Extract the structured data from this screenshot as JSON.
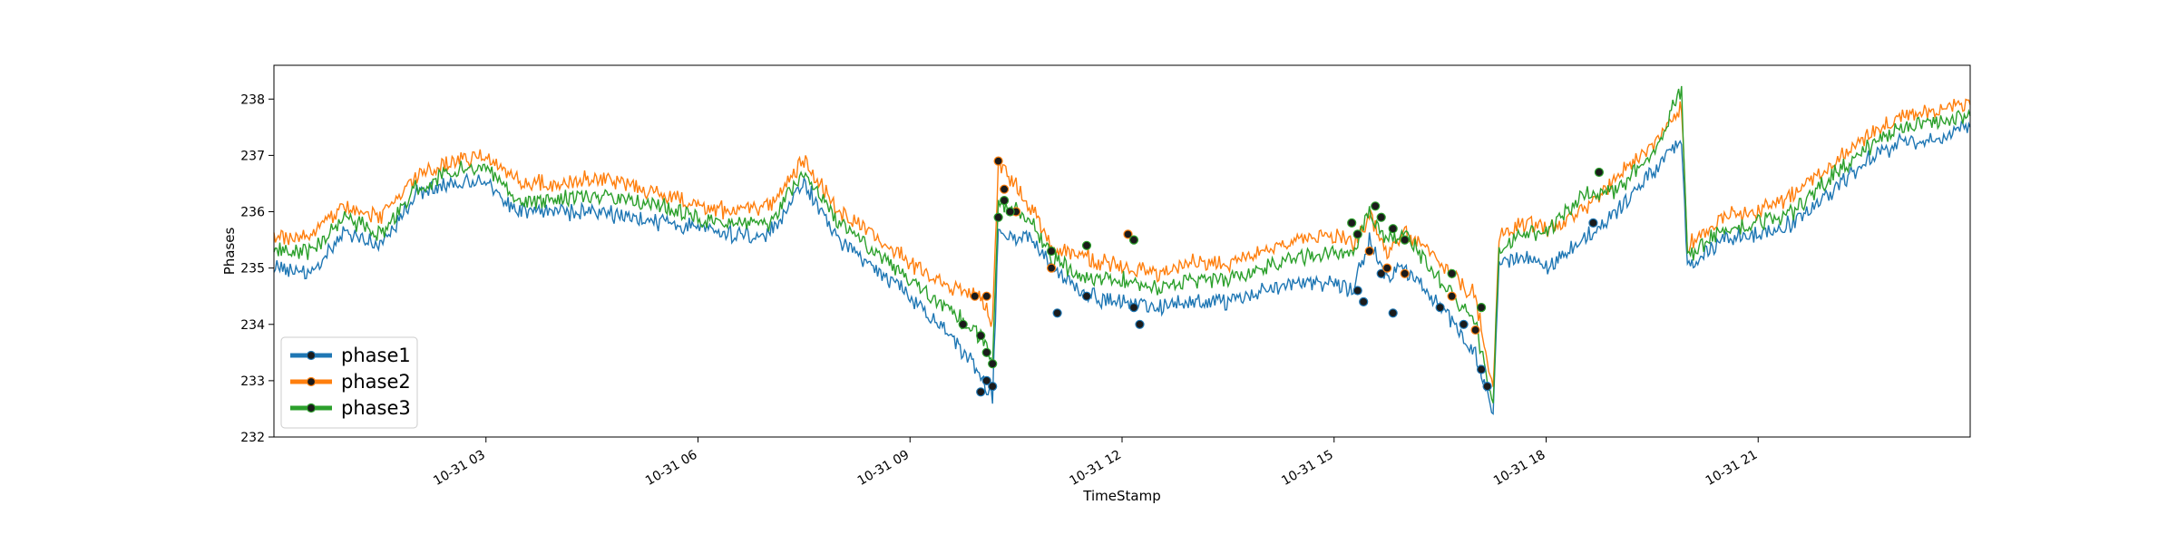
{
  "chart_data": {
    "type": "line",
    "xlabel": "TimeStamp",
    "ylabel": "Phases",
    "xlim": [
      "10-31 00:00",
      "11-01 00:00"
    ],
    "ylim": [
      232,
      238.6
    ],
    "x_ticks": [
      {
        "t": "10-31 03:00",
        "label": "10-31 03"
      },
      {
        "t": "10-31 06:00",
        "label": "10-31 06"
      },
      {
        "t": "10-31 09:00",
        "label": "10-31 09"
      },
      {
        "t": "10-31 12:00",
        "label": "10-31 12"
      },
      {
        "t": "10-31 15:00",
        "label": "10-31 15"
      },
      {
        "t": "10-31 18:00",
        "label": "10-31 18"
      },
      {
        "t": "10-31 21:00",
        "label": "10-31 21"
      }
    ],
    "y_ticks": [
      232,
      233,
      234,
      235,
      236,
      237,
      238
    ],
    "grid": false,
    "legend_position": "lower-left",
    "series": [
      {
        "name": "phase1",
        "color": "#1f77b4",
        "points": [
          [
            "10-31 00:00",
            235.0
          ],
          [
            "10-31 00:30",
            234.9
          ],
          [
            "10-31 01:00",
            235.6
          ],
          [
            "10-31 01:30",
            235.4
          ],
          [
            "10-31 02:00",
            236.3
          ],
          [
            "10-31 02:30",
            236.5
          ],
          [
            "10-31 03:00",
            236.5
          ],
          [
            "10-31 03:30",
            236.0
          ],
          [
            "10-31 04:00",
            236.0
          ],
          [
            "10-31 04:30",
            236.0
          ],
          [
            "10-31 05:00",
            235.9
          ],
          [
            "10-31 05:30",
            235.8
          ],
          [
            "10-31 06:00",
            235.7
          ],
          [
            "10-31 06:30",
            235.6
          ],
          [
            "10-31 07:00",
            235.6
          ],
          [
            "10-31 07:30",
            236.5
          ],
          [
            "10-31 08:00",
            235.5
          ],
          [
            "10-31 08:30",
            235.0
          ],
          [
            "10-31 09:00",
            234.5
          ],
          [
            "10-31 09:30",
            233.9
          ],
          [
            "10-31 10:00",
            233.1
          ],
          [
            "10-31 10:10",
            232.7
          ],
          [
            "10-31 10:15",
            235.6
          ],
          [
            "10-31 10:45",
            235.5
          ],
          [
            "10-31 11:00",
            235.0
          ],
          [
            "10-31 11:30",
            234.5
          ],
          [
            "10-31 12:00",
            234.4
          ],
          [
            "10-31 12:30",
            234.3
          ],
          [
            "10-31 13:00",
            234.4
          ],
          [
            "10-31 13:30",
            234.4
          ],
          [
            "10-31 14:00",
            234.6
          ],
          [
            "10-31 14:30",
            234.8
          ],
          [
            "10-31 15:00",
            234.7
          ],
          [
            "10-31 15:15",
            234.6
          ],
          [
            "10-31 15:30",
            235.5
          ],
          [
            "10-31 15:45",
            234.8
          ],
          [
            "10-31 16:00",
            235.0
          ],
          [
            "10-31 16:30",
            234.3
          ],
          [
            "10-31 17:00",
            233.5
          ],
          [
            "10-31 17:15",
            232.4
          ],
          [
            "10-31 17:20",
            235.1
          ],
          [
            "10-31 17:45",
            235.2
          ],
          [
            "10-31 18:00",
            235.0
          ],
          [
            "10-31 18:30",
            235.5
          ],
          [
            "10-31 19:00",
            236.0
          ],
          [
            "10-31 19:30",
            236.7
          ],
          [
            "10-31 19:55",
            237.3
          ],
          [
            "10-31 20:00",
            235.0
          ],
          [
            "10-31 20:30",
            235.5
          ],
          [
            "10-31 21:00",
            235.6
          ],
          [
            "10-31 21:30",
            235.8
          ],
          [
            "10-31 22:00",
            236.3
          ],
          [
            "10-31 22:30",
            236.9
          ],
          [
            "10-31 23:00",
            237.2
          ],
          [
            "10-31 23:30",
            237.3
          ],
          [
            "11-01 00:00",
            237.5
          ]
        ],
        "markers": [
          [
            "10-31 10:00",
            232.8
          ],
          [
            "10-31 10:05",
            233.0
          ],
          [
            "10-31 10:10",
            232.9
          ],
          [
            "10-31 11:05",
            234.2
          ],
          [
            "10-31 11:30",
            234.5
          ],
          [
            "10-31 12:10",
            234.3
          ],
          [
            "10-31 12:15",
            234.0
          ],
          [
            "10-31 15:20",
            234.6
          ],
          [
            "10-31 15:25",
            234.4
          ],
          [
            "10-31 15:40",
            234.9
          ],
          [
            "10-31 15:50",
            234.2
          ],
          [
            "10-31 16:30",
            234.3
          ],
          [
            "10-31 16:50",
            234.0
          ],
          [
            "10-31 17:05",
            233.2
          ],
          [
            "10-31 17:10",
            232.9
          ],
          [
            "10-31 18:40",
            235.8
          ]
        ]
      },
      {
        "name": "phase2",
        "color": "#ff7f0e",
        "points": [
          [
            "10-31 00:00",
            235.5
          ],
          [
            "10-31 00:30",
            235.6
          ],
          [
            "10-31 01:00",
            236.1
          ],
          [
            "10-31 01:30",
            235.9
          ],
          [
            "10-31 02:00",
            236.6
          ],
          [
            "10-31 02:30",
            236.9
          ],
          [
            "10-31 03:00",
            237.0
          ],
          [
            "10-31 03:30",
            236.5
          ],
          [
            "10-31 04:00",
            236.5
          ],
          [
            "10-31 04:30",
            236.6
          ],
          [
            "10-31 05:00",
            236.5
          ],
          [
            "10-31 05:30",
            236.3
          ],
          [
            "10-31 06:00",
            236.1
          ],
          [
            "10-31 06:30",
            236.0
          ],
          [
            "10-31 07:00",
            236.1
          ],
          [
            "10-31 07:30",
            236.9
          ],
          [
            "10-31 08:00",
            236.0
          ],
          [
            "10-31 08:30",
            235.6
          ],
          [
            "10-31 09:00",
            235.1
          ],
          [
            "10-31 09:30",
            234.7
          ],
          [
            "10-31 10:00",
            234.5
          ],
          [
            "10-31 10:10",
            234.0
          ],
          [
            "10-31 10:15",
            236.9
          ],
          [
            "10-31 10:45",
            236.0
          ],
          [
            "10-31 11:00",
            235.4
          ],
          [
            "10-31 11:30",
            235.2
          ],
          [
            "10-31 12:00",
            235.0
          ],
          [
            "10-31 12:30",
            234.9
          ],
          [
            "10-31 13:00",
            235.1
          ],
          [
            "10-31 13:30",
            235.1
          ],
          [
            "10-31 14:00",
            235.3
          ],
          [
            "10-31 14:30",
            235.5
          ],
          [
            "10-31 15:00",
            235.6
          ],
          [
            "10-31 15:15",
            235.4
          ],
          [
            "10-31 15:30",
            235.9
          ],
          [
            "10-31 15:45",
            235.3
          ],
          [
            "10-31 16:00",
            235.6
          ],
          [
            "10-31 16:30",
            235.1
          ],
          [
            "10-31 17:00",
            234.5
          ],
          [
            "10-31 17:15",
            232.8
          ],
          [
            "10-31 17:20",
            235.6
          ],
          [
            "10-31 17:45",
            235.8
          ],
          [
            "10-31 18:00",
            235.7
          ],
          [
            "10-31 18:30",
            236.0
          ],
          [
            "10-31 19:00",
            236.6
          ],
          [
            "10-31 19:30",
            237.2
          ],
          [
            "10-31 19:55",
            237.9
          ],
          [
            "10-31 20:00",
            235.4
          ],
          [
            "10-31 20:30",
            235.9
          ],
          [
            "10-31 21:00",
            236.0
          ],
          [
            "10-31 21:30",
            236.3
          ],
          [
            "10-31 22:00",
            236.8
          ],
          [
            "10-31 22:30",
            237.3
          ],
          [
            "10-31 23:00",
            237.7
          ],
          [
            "10-31 23:30",
            237.8
          ],
          [
            "11-01 00:00",
            237.9
          ]
        ],
        "markers": [
          [
            "10-31 09:55",
            234.5
          ],
          [
            "10-31 10:05",
            234.5
          ],
          [
            "10-31 10:15",
            236.9
          ],
          [
            "10-31 10:20",
            236.4
          ],
          [
            "10-31 10:30",
            236.0
          ],
          [
            "10-31 11:00",
            235.0
          ],
          [
            "10-31 12:05",
            235.6
          ],
          [
            "10-31 15:30",
            235.3
          ],
          [
            "10-31 15:45",
            235.0
          ],
          [
            "10-31 16:00",
            234.9
          ],
          [
            "10-31 16:40",
            234.5
          ],
          [
            "10-31 17:00",
            233.9
          ]
        ]
      },
      {
        "name": "phase3",
        "color": "#2ca02c",
        "points": [
          [
            "10-31 00:00",
            235.3
          ],
          [
            "10-31 00:30",
            235.3
          ],
          [
            "10-31 01:00",
            235.9
          ],
          [
            "10-31 01:30",
            235.6
          ],
          [
            "10-31 02:00",
            236.4
          ],
          [
            "10-31 02:30",
            236.7
          ],
          [
            "10-31 03:00",
            236.8
          ],
          [
            "10-31 03:30",
            236.2
          ],
          [
            "10-31 04:00",
            236.2
          ],
          [
            "10-31 04:30",
            236.3
          ],
          [
            "10-31 05:00",
            236.2
          ],
          [
            "10-31 05:30",
            236.1
          ],
          [
            "10-31 06:00",
            235.9
          ],
          [
            "10-31 06:30",
            235.8
          ],
          [
            "10-31 07:00",
            235.8
          ],
          [
            "10-31 07:30",
            236.7
          ],
          [
            "10-31 08:00",
            235.8
          ],
          [
            "10-31 08:30",
            235.3
          ],
          [
            "10-31 09:00",
            234.8
          ],
          [
            "10-31 09:30",
            234.3
          ],
          [
            "10-31 10:00",
            233.8
          ],
          [
            "10-31 10:10",
            233.4
          ],
          [
            "10-31 10:15",
            236.2
          ],
          [
            "10-31 10:45",
            235.8
          ],
          [
            "10-31 11:00",
            235.2
          ],
          [
            "10-31 11:30",
            234.8
          ],
          [
            "10-31 12:00",
            234.8
          ],
          [
            "10-31 12:30",
            234.6
          ],
          [
            "10-31 13:00",
            234.8
          ],
          [
            "10-31 13:30",
            234.8
          ],
          [
            "10-31 14:00",
            235.0
          ],
          [
            "10-31 14:30",
            235.2
          ],
          [
            "10-31 15:00",
            235.3
          ],
          [
            "10-31 15:15",
            235.2
          ],
          [
            "10-31 15:30",
            236.0
          ],
          [
            "10-31 15:45",
            235.5
          ],
          [
            "10-31 16:00",
            235.6
          ],
          [
            "10-31 16:30",
            234.8
          ],
          [
            "10-31 17:00",
            234.0
          ],
          [
            "10-31 17:15",
            232.6
          ],
          [
            "10-31 17:20",
            235.4
          ],
          [
            "10-31 17:45",
            235.6
          ],
          [
            "10-31 18:00",
            235.6
          ],
          [
            "10-31 18:30",
            236.3
          ],
          [
            "10-31 19:00",
            236.4
          ],
          [
            "10-31 19:30",
            237.0
          ],
          [
            "10-31 19:55",
            238.2
          ],
          [
            "10-31 20:00",
            235.2
          ],
          [
            "10-31 20:30",
            235.7
          ],
          [
            "10-31 21:00",
            235.8
          ],
          [
            "10-31 21:30",
            236.0
          ],
          [
            "10-31 22:00",
            236.6
          ],
          [
            "10-31 22:30",
            237.1
          ],
          [
            "10-31 23:00",
            237.5
          ],
          [
            "10-31 23:30",
            237.6
          ],
          [
            "11-01 00:00",
            237.7
          ]
        ],
        "markers": [
          [
            "10-31 09:45",
            234.0
          ],
          [
            "10-31 10:00",
            233.8
          ],
          [
            "10-31 10:05",
            233.5
          ],
          [
            "10-31 10:10",
            233.3
          ],
          [
            "10-31 10:15",
            235.9
          ],
          [
            "10-31 10:20",
            236.2
          ],
          [
            "10-31 10:25",
            236.0
          ],
          [
            "10-31 11:00",
            235.3
          ],
          [
            "10-31 11:30",
            235.4
          ],
          [
            "10-31 12:10",
            235.5
          ],
          [
            "10-31 15:15",
            235.8
          ],
          [
            "10-31 15:20",
            235.6
          ],
          [
            "10-31 15:35",
            236.1
          ],
          [
            "10-31 15:40",
            235.9
          ],
          [
            "10-31 15:50",
            235.7
          ],
          [
            "10-31 16:00",
            235.5
          ],
          [
            "10-31 16:40",
            234.9
          ],
          [
            "10-31 17:05",
            234.3
          ],
          [
            "10-31 18:45",
            236.7
          ]
        ]
      }
    ]
  }
}
